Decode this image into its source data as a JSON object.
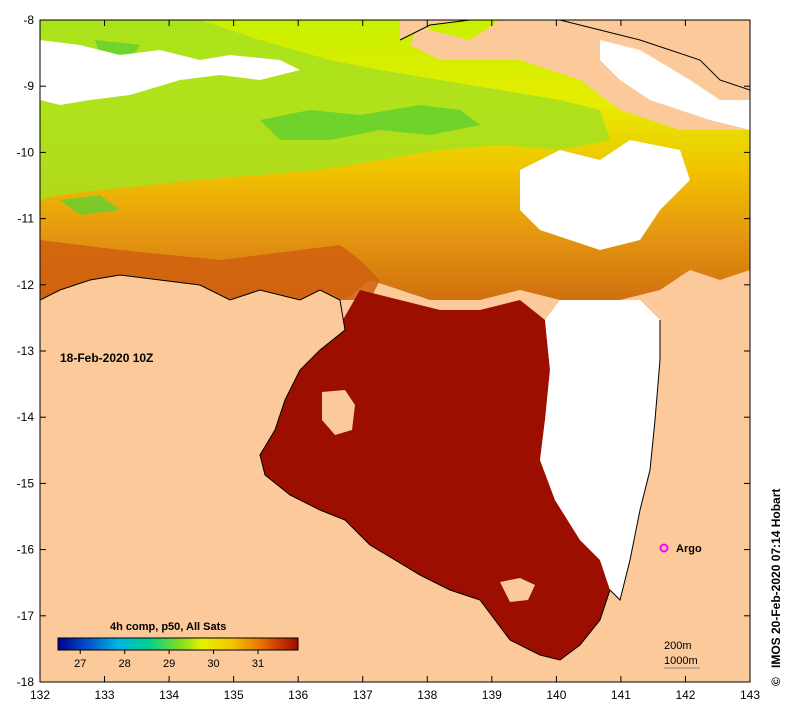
{
  "map": {
    "date_label": "18-Feb-2020 10Z",
    "credit": "IMOS 20-Feb-2020 07:14 Hobart",
    "credit_symbol": "©",
    "x_ticks": [
      "132",
      "133",
      "134",
      "135",
      "136",
      "137",
      "138",
      "139",
      "140",
      "141",
      "142",
      "143"
    ],
    "y_ticks": [
      "-8",
      "-9",
      "-10",
      "-11",
      "-12",
      "-13",
      "-14",
      "-15",
      "-16",
      "-17",
      "-18"
    ],
    "colorbar": {
      "title": "4h comp, p50, All Sats",
      "labels": [
        "27",
        "28",
        "29",
        "30",
        "31"
      ],
      "range": [
        26.5,
        31.9
      ]
    },
    "argo": {
      "label": "Argo",
      "lon": 141.7,
      "lat": -16.0,
      "color": "#ff00ff"
    },
    "scale": {
      "line1": "200m",
      "line2": "1000m"
    },
    "colors": {
      "land": "#fbc99a",
      "no_data": "#ffffff",
      "warm_dark": "#9c0f00"
    }
  }
}
